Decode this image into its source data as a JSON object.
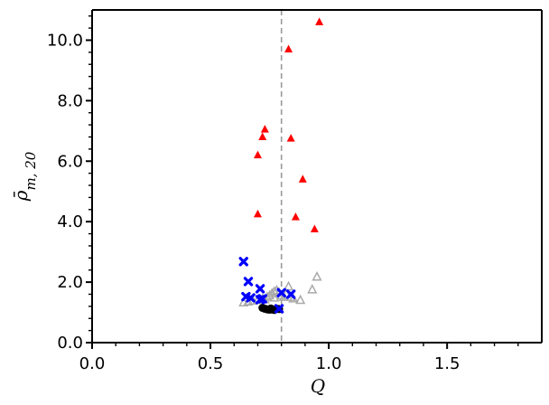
{
  "chart_data": {
    "type": "scatter",
    "xlabel": "Q",
    "ylabel": "ρ̄",
    "ylabel_subscript": "m, 20",
    "xlim": [
      0.0,
      1.9
    ],
    "ylim": [
      0.0,
      11.0
    ],
    "x_ticks": [
      0.0,
      0.5,
      1.0,
      1.5
    ],
    "x_tick_labels": [
      "0.0",
      "0.5",
      "1.0",
      "1.5"
    ],
    "y_ticks": [
      0.0,
      2.0,
      4.0,
      6.0,
      8.0,
      10.0
    ],
    "y_tick_labels": [
      "0.0",
      "2.0",
      "4.0",
      "6.0",
      "8.0",
      "10.0"
    ],
    "grid": false,
    "reference_line": {
      "x": 0.8,
      "style": "dashed",
      "color": "#999999"
    },
    "series": [
      {
        "marker": "triangle-open",
        "color": "#aaaaaa",
        "points": [
          [
            0.64,
            1.32
          ],
          [
            0.66,
            1.35
          ],
          [
            0.68,
            1.38
          ],
          [
            0.7,
            1.4
          ],
          [
            0.72,
            1.45
          ],
          [
            0.74,
            1.5
          ],
          [
            0.75,
            1.55
          ],
          [
            0.76,
            1.62
          ],
          [
            0.77,
            1.68
          ],
          [
            0.78,
            1.72
          ],
          [
            0.79,
            1.65
          ],
          [
            0.8,
            1.55
          ],
          [
            0.81,
            1.5
          ],
          [
            0.82,
            1.6
          ],
          [
            0.83,
            1.85
          ],
          [
            0.84,
            1.5
          ],
          [
            0.85,
            1.45
          ],
          [
            0.88,
            1.4
          ],
          [
            0.93,
            1.75
          ],
          [
            0.95,
            2.17
          ],
          [
            0.73,
            1.42
          ],
          [
            0.77,
            1.48
          ]
        ]
      },
      {
        "marker": "circle-filled",
        "color": "#000000",
        "points": [
          [
            0.72,
            1.15
          ],
          [
            0.73,
            1.12
          ],
          [
            0.74,
            1.1
          ],
          [
            0.75,
            1.09
          ],
          [
            0.76,
            1.1
          ],
          [
            0.77,
            1.08
          ],
          [
            0.78,
            1.12
          ],
          [
            0.79,
            1.11
          ],
          [
            0.755,
            1.13
          ],
          [
            0.765,
            1.09
          ]
        ]
      },
      {
        "marker": "x-filled",
        "color": "#0000ff",
        "points": [
          [
            0.64,
            2.68
          ],
          [
            0.66,
            2.02
          ],
          [
            0.65,
            1.52
          ],
          [
            0.67,
            1.48
          ],
          [
            0.71,
            1.78
          ],
          [
            0.71,
            1.42
          ],
          [
            0.72,
            1.45
          ],
          [
            0.79,
            1.12
          ],
          [
            0.8,
            1.65
          ],
          [
            0.84,
            1.6
          ]
        ]
      },
      {
        "marker": "triangle-filled",
        "color": "#ff0000",
        "points": [
          [
            0.96,
            10.6
          ],
          [
            0.83,
            9.7
          ],
          [
            0.73,
            7.05
          ],
          [
            0.72,
            6.8
          ],
          [
            0.7,
            6.2
          ],
          [
            0.84,
            6.75
          ],
          [
            0.89,
            5.4
          ],
          [
            0.7,
            4.25
          ],
          [
            0.86,
            4.15
          ],
          [
            0.94,
            3.75
          ]
        ]
      }
    ]
  }
}
